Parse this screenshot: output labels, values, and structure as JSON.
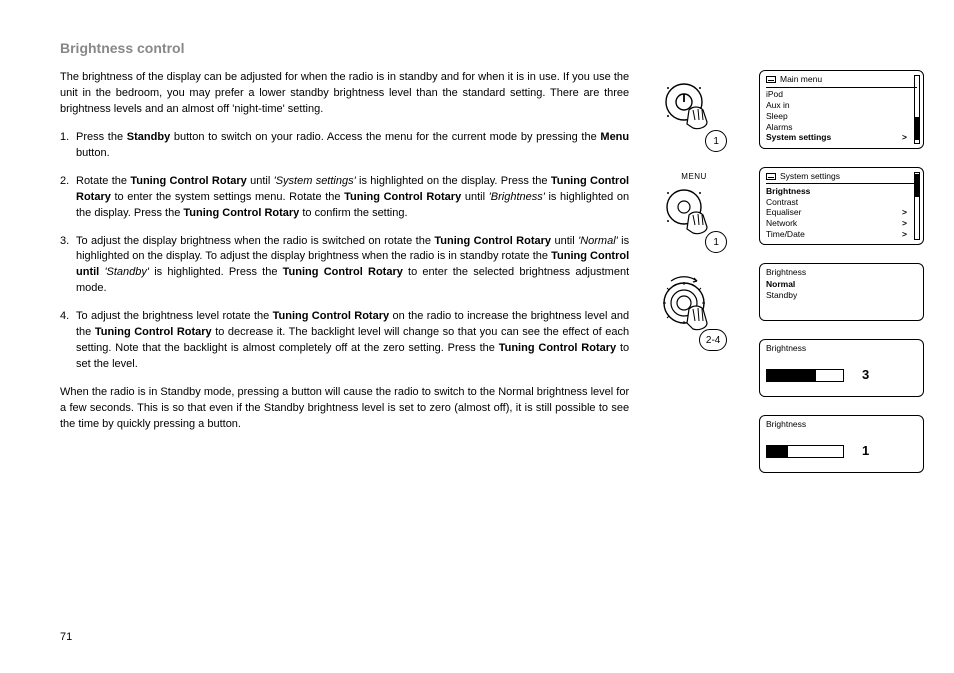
{
  "page_number": "71",
  "title": "Brightness control",
  "intro": "The brightness of the display can be adjusted for when the radio is in standby  and for when it is in use. If you use the unit in the bedroom, you may prefer a lower standby brightness level than the standard setting. There are three brightness levels and an almost off 'night-time' setting.",
  "steps": {
    "s1": {
      "num": "1."
    },
    "s2": {
      "num": "2."
    },
    "s3": {
      "num": "3."
    },
    "s4": {
      "num": "4."
    }
  },
  "outro": "When the radio is in Standby mode, pressing a button will cause the radio to switch to the Normal brightness level for a few seconds. This is so that even if the Standby brightness level is set to zero (almost off), it is still possible to see the time by quickly pressing a button.",
  "mid": {
    "menu_label": "MENU",
    "badge1": "1",
    "badge2": "1",
    "badge3": "2-4"
  },
  "lcd1": {
    "title": "Main menu",
    "items": [
      "iPod",
      "Aux in",
      "Sleep",
      "Alarms",
      "System settings"
    ],
    "selected_index": 4,
    "arrows": [
      false,
      false,
      false,
      false,
      true
    ],
    "scroll_thumb": {
      "top_pct": 62,
      "height_pct": 34
    }
  },
  "lcd2": {
    "title": "System settings",
    "items": [
      "Brightness",
      "Contrast",
      "Equaliser",
      "Network",
      "Time/Date"
    ],
    "selected_index": 0,
    "arrows": [
      false,
      false,
      true,
      true,
      true
    ],
    "scroll_thumb": {
      "top_pct": 2,
      "height_pct": 34
    }
  },
  "lcd3": {
    "title": "Brightness",
    "items": [
      "Normal",
      "Standby"
    ],
    "selected_index": 0
  },
  "lcd4": {
    "title": "Brightness",
    "level": "3",
    "fill_pct": 65
  },
  "lcd5": {
    "title": "Brightness",
    "level": "1",
    "fill_pct": 28
  }
}
